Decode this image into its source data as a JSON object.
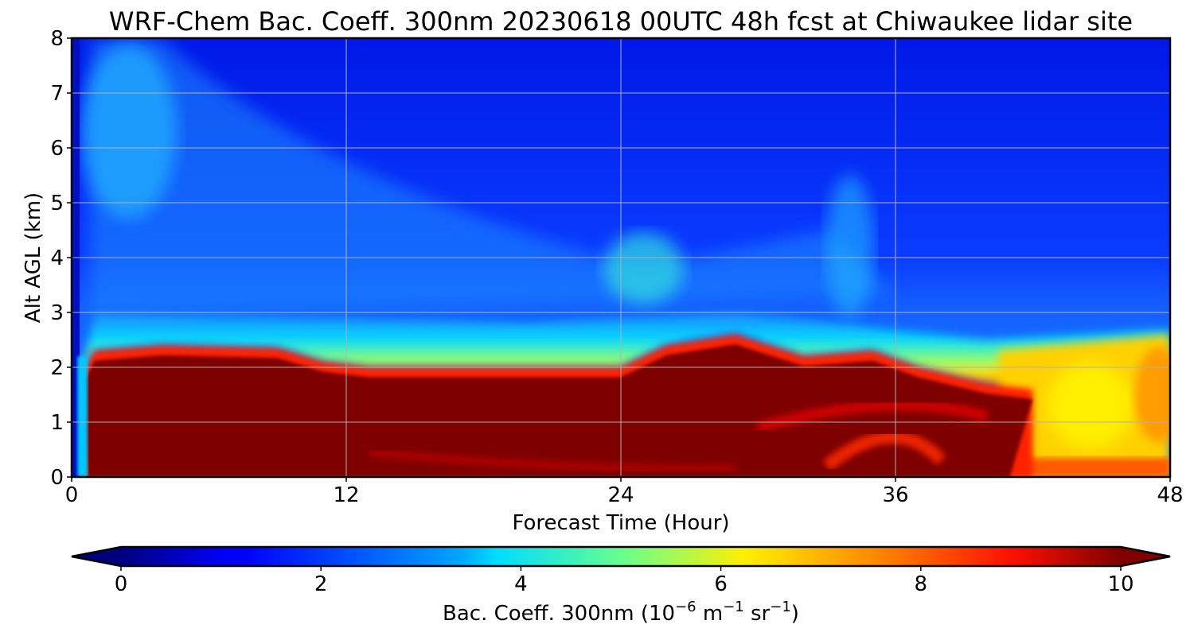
{
  "chart_data": {
    "type": "heatmap",
    "title": "WRF-Chem Bac. Coeff. 300nm  20230618 00UTC 48h fcst at Chiwaukee lidar site",
    "xlabel": "Forecast Time (Hour)",
    "ylabel": "Alt AGL (km)",
    "xlim": [
      0,
      48
    ],
    "ylim": [
      0,
      8
    ],
    "x_ticks": [
      0,
      12,
      24,
      36,
      48
    ],
    "y_ticks": [
      0,
      1,
      2,
      3,
      4,
      5,
      6,
      7,
      8
    ],
    "grid": true,
    "colormap": "jet",
    "colorbar": {
      "orientation": "horizontal",
      "placement": "bottom",
      "range": [
        0,
        10
      ],
      "ticks": [
        0,
        2,
        4,
        6,
        8,
        10
      ],
      "extend": "both",
      "label_prefix": "Bac. Coeff. 300nm  (10",
      "label_exp1": "−6",
      "label_mid1": " m",
      "label_exp2": "−1",
      "label_mid2": " sr",
      "label_exp3": "−1",
      "label_suffix": ")"
    },
    "feature_summary": {
      "layer_top_km": [
        [
          0.4,
          1.8
        ],
        [
          1,
          2.3
        ],
        [
          4,
          2.4
        ],
        [
          9,
          2.35
        ],
        [
          11,
          2.1
        ],
        [
          13,
          2.0
        ],
        [
          24,
          2.0
        ],
        [
          26,
          2.4
        ],
        [
          29,
          2.6
        ],
        [
          32,
          2.2
        ],
        [
          35,
          2.3
        ],
        [
          37,
          2.0
        ],
        [
          40,
          1.7
        ],
        [
          42,
          1.6
        ]
      ],
      "overlying_gradient_top_km": [
        [
          1,
          3.0
        ],
        [
          10,
          2.9
        ],
        [
          20,
          2.8
        ],
        [
          29,
          3.0
        ],
        [
          40,
          2.5
        ],
        [
          48,
          2.7
        ]
      ],
      "surface_decay": [
        [
          42,
          0.0
        ],
        [
          44,
          0.6
        ],
        [
          46,
          0.5
        ],
        [
          48,
          0.9
        ]
      ],
      "upper_plume": [
        [
          1,
          6.5
        ],
        [
          8,
          5.0
        ],
        [
          25,
          3.8
        ],
        [
          33,
          4.5
        ]
      ],
      "values_in_layer": 10,
      "values_free_troposphere": 1.5
    }
  }
}
